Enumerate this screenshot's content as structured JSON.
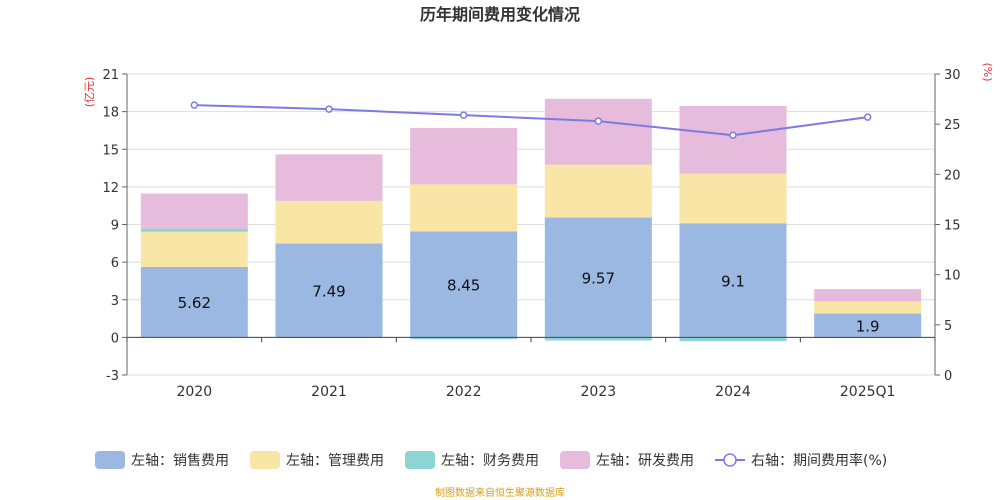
{
  "chart_data": {
    "type": "bar",
    "title": "历年期间费用变化情况",
    "categories": [
      "2020",
      "2021",
      "2022",
      "2023",
      "2024",
      "2025Q1"
    ],
    "left_axis": {
      "unit": "(亿元)",
      "ylim": [
        -3,
        21
      ],
      "ticks": [
        "21",
        "18",
        "15",
        "12",
        "9",
        "6",
        "3",
        "0",
        "-3"
      ]
    },
    "right_axis": {
      "unit": "(%)",
      "ylim": [
        0,
        30
      ],
      "ticks": [
        "30",
        "25",
        "20",
        "15",
        "10",
        "5",
        "0"
      ]
    },
    "series": [
      {
        "name": "左轴：销售费用",
        "axis": "left",
        "kind": "bar",
        "color": "#9ab8e2",
        "values": [
          5.62,
          7.49,
          8.45,
          9.57,
          9.1,
          1.9
        ]
      },
      {
        "name": "左轴：管理费用",
        "axis": "left",
        "kind": "bar",
        "color": "#f9e6a6",
        "values": [
          2.8,
          3.4,
          3.75,
          4.2,
          3.95,
          0.95
        ]
      },
      {
        "name": "左轴：财务费用",
        "axis": "left",
        "kind": "bar",
        "color": "#8fd4d4",
        "values": [
          0.25,
          -0.05,
          -0.15,
          -0.25,
          -0.3,
          -0.05
        ]
      },
      {
        "name": "左轴：研发费用",
        "axis": "left",
        "kind": "bar",
        "color": "#e6bbdc",
        "values": [
          2.8,
          3.7,
          4.5,
          5.25,
          5.4,
          1.0
        ]
      },
      {
        "name": "右轴：期间费用率(%)",
        "axis": "right",
        "kind": "line",
        "color": "#7b7be6",
        "values": [
          26.9,
          26.5,
          25.9,
          25.3,
          23.9,
          25.7
        ]
      }
    ],
    "data_labels": [
      "5.62",
      "7.49",
      "8.45",
      "9.57",
      "9.1",
      "1.9"
    ],
    "grid": true,
    "legend_position": "bottom"
  },
  "footer": {
    "source": "制图数据来自恒生聚源数据库"
  }
}
